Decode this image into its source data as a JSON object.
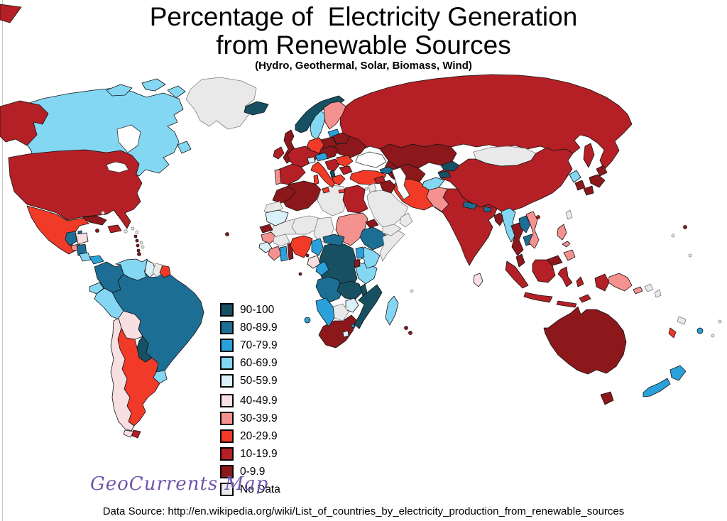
{
  "title": {
    "line1": "Percentage of  Electricity Generation",
    "line2": "from Renewable Sources",
    "subtitle": "(Hydro, Geothermal, Solar, Biomass, Wind)"
  },
  "watermark": {
    "text": "GeoCurrents Map",
    "color": "#6f55ad"
  },
  "source": "Data Source: http://en.wikipedia.org/wiki/List_of_countries_by_electricity_production_from_renewable_sources",
  "legend": {
    "bins": [
      {
        "label": "90-100",
        "color": "#175062"
      },
      {
        "label": "80-89.9",
        "color": "#1d6e94"
      },
      {
        "label": "70-79.9",
        "color": "#2aa1da"
      },
      {
        "label": "60-69.9",
        "color": "#84d7f3"
      },
      {
        "label": "50-59.9",
        "color": "#dbf1fa"
      },
      {
        "label": "40-49.9",
        "color": "#f8dfe2"
      },
      {
        "label": "30-39.9",
        "color": "#f5928f"
      },
      {
        "label": "20-29.9",
        "color": "#f23a28"
      },
      {
        "label": "10-19.9",
        "color": "#b42025"
      },
      {
        "label": "0-9.9",
        "color": "#8c181c"
      },
      {
        "label": "No Data",
        "color": "#e9e9e9"
      }
    ]
  },
  "chart_data": {
    "type": "choropleth",
    "title": "Percentage of Electricity Generation from Renewable Sources",
    "subtitle": "(Hydro, Geothermal, Solar, Biomass, Wind)",
    "unit": "percent of electricity generation, binned",
    "bins": [
      "90-100",
      "80-89.9",
      "70-79.9",
      "60-69.9",
      "50-59.9",
      "40-49.9",
      "30-39.9",
      "20-29.9",
      "10-19.9",
      "0-9.9",
      "No Data"
    ],
    "regions": {
      "russia": "10-19.9",
      "chukotka-russia": "10-19.9",
      "canada": "60-69.9",
      "greenland": "No Data",
      "alaska": "10-19.9",
      "usa": "10-19.9",
      "mexico": "20-29.9",
      "kazakhstan": "0-9.9",
      "mongolia": "No Data",
      "china": "10-19.9",
      "central-asia": "0-9.9",
      "saudi-arabia": "No Data",
      "india": "10-19.9",
      "brazil": "80-89.9",
      "argentina": "20-29.9",
      "chile": "40-49.9",
      "australia": "0-9.9",
      "algeria": "0-9.9",
      "libya": "No Data",
      "mali": "No Data",
      "niger": "No Data",
      "chad": "No Data",
      "sudan": "30-39.9",
      "egypt": "10-19.9",
      "dr-congo": "90-100",
      "ethiopia": "80-89.9",
      "somalia": "No Data",
      "south-africa": "0-9.9",
      "iran": "20-29.9",
      "turkey": "20-29.9",
      "ukraine": "0-9.9",
      "morocco": "0-9.9",
      "western-sahara": "No Data",
      "mauritania": "50-59.9",
      "senegal": "0-9.9",
      "guinea": "30-39.9",
      "sierra-leone-liberia": "50-59.9",
      "ivory-coast": "30-39.9",
      "burkina-faso": "No Data",
      "ghana": "70-79.9",
      "togo-benin": "0-9.9",
      "nigeria": "20-29.9",
      "cameroon": "70-79.9",
      "central-african-republic": "80-89.9",
      "gabon": "40-49.9",
      "congo-republic": "70-79.9",
      "angola": "80-89.9",
      "zambia": "90-100",
      "tanzania": "60-69.9",
      "kenya": "60-69.9",
      "uganda": "70-79.9",
      "rwanda-burundi": "0-9.9",
      "malawi": "90-100",
      "mozambique": "90-100",
      "zimbabwe": "50-59.9",
      "botswana": "No Data",
      "namibia": "70-79.9",
      "lesotho": "50-59.9",
      "madagascar": "60-69.9",
      "eritrea": "0-9.9",
      "iceland": "90-100",
      "ireland": "10-19.9",
      "united-kingdom": "0-9.9",
      "norway": "90-100",
      "sweden": "60-69.9",
      "finland": "30-39.9",
      "denmark": "30-39.9",
      "baltic-states": "70-79.9",
      "poland": "0-9.9",
      "belarus": "0-9.9",
      "germany": "20-29.9",
      "france": "10-19.9",
      "switzerland": "50-59.9",
      "central-europe": "0-9.9",
      "austria": "70-79.9",
      "italy": "20-29.9",
      "balkans": "10-19.9",
      "albania": "90-100",
      "greece": "20-29.9",
      "romania": "20-29.9",
      "bulgaria": "10-19.9",
      "portugal": "30-39.9",
      "spain": "10-19.9",
      "georgia": "80-89.9",
      "azerbaijan": "10-19.9",
      "syria": "10-19.9",
      "iraq": "0-9.9",
      "jordan-israel": "No Data",
      "yemen": "No Data",
      "oman": "No Data",
      "kyrgyzstan": "90-100",
      "tajikistan": "90-100",
      "afghanistan": "60-69.9",
      "pakistan": "30-39.9",
      "nepal": "80-89.9",
      "bhutan": "80-89.9",
      "bangladesh": "0-9.9",
      "sri-lanka": "40-49.9",
      "myanmar": "60-69.9",
      "thailand": "0-9.9",
      "laos": "80-89.9",
      "cambodia": "80-89.9",
      "vietnam": "30-39.9",
      "malaysia": "0-9.9",
      "indonesia": "10-19.9",
      "philippines": "30-39.9",
      "north-korea": "60-69.9",
      "south-korea": "0-9.9",
      "japan": "0-9.9",
      "taiwan": "No Data",
      "papua-new-guinea": "30-39.9",
      "guatemala": "80-89.9",
      "belize": "80-89.9",
      "honduras": "40-49.9",
      "el-salvador": "30-39.9",
      "nicaragua": "80-89.9",
      "costa-rica": "60-69.9",
      "panama": "70-79.9",
      "cuba": "0-9.9",
      "hispaniola": "10-19.9",
      "colombia": "80-89.9",
      "venezuela": "60-69.9",
      "guyana": "50-59.9",
      "suriname": "No Data",
      "french-guiana": "20-29.9",
      "ecuador": "60-69.9",
      "peru": "60-69.9",
      "bolivia": "40-49.9",
      "paraguay": "90-100",
      "uruguay": "60-69.9",
      "tierra-del-fuego-argentina": "10-19.9",
      "new-zealand": "70-79.9",
      "solomon-islands": "No Data",
      "vanuatu": "20-29.9",
      "new-caledonia": "No Data",
      "fiji": "70-79.9",
      "guam": "0-9.9",
      "micronesia": "No Data",
      "jamaica": "0-9.9",
      "puerto-rico": "No Data",
      "bahamas": "No Data",
      "lesser-antilles-nodata": "No Data",
      "lesser-antilles": "0-9.9",
      "trinidad": "0-9.9",
      "cape-verde": "0-9.9",
      "equatorial-guinea": "0-9.9",
      "sao-tome": "0-9.9",
      "atlantic-island": "70-79.9",
      "swaziland": "70-79.9",
      "mauritius": "0-9.9",
      "reunion": "0-9.9",
      "seychelles": "No Data",
      "cyprus": "No Data"
    }
  }
}
